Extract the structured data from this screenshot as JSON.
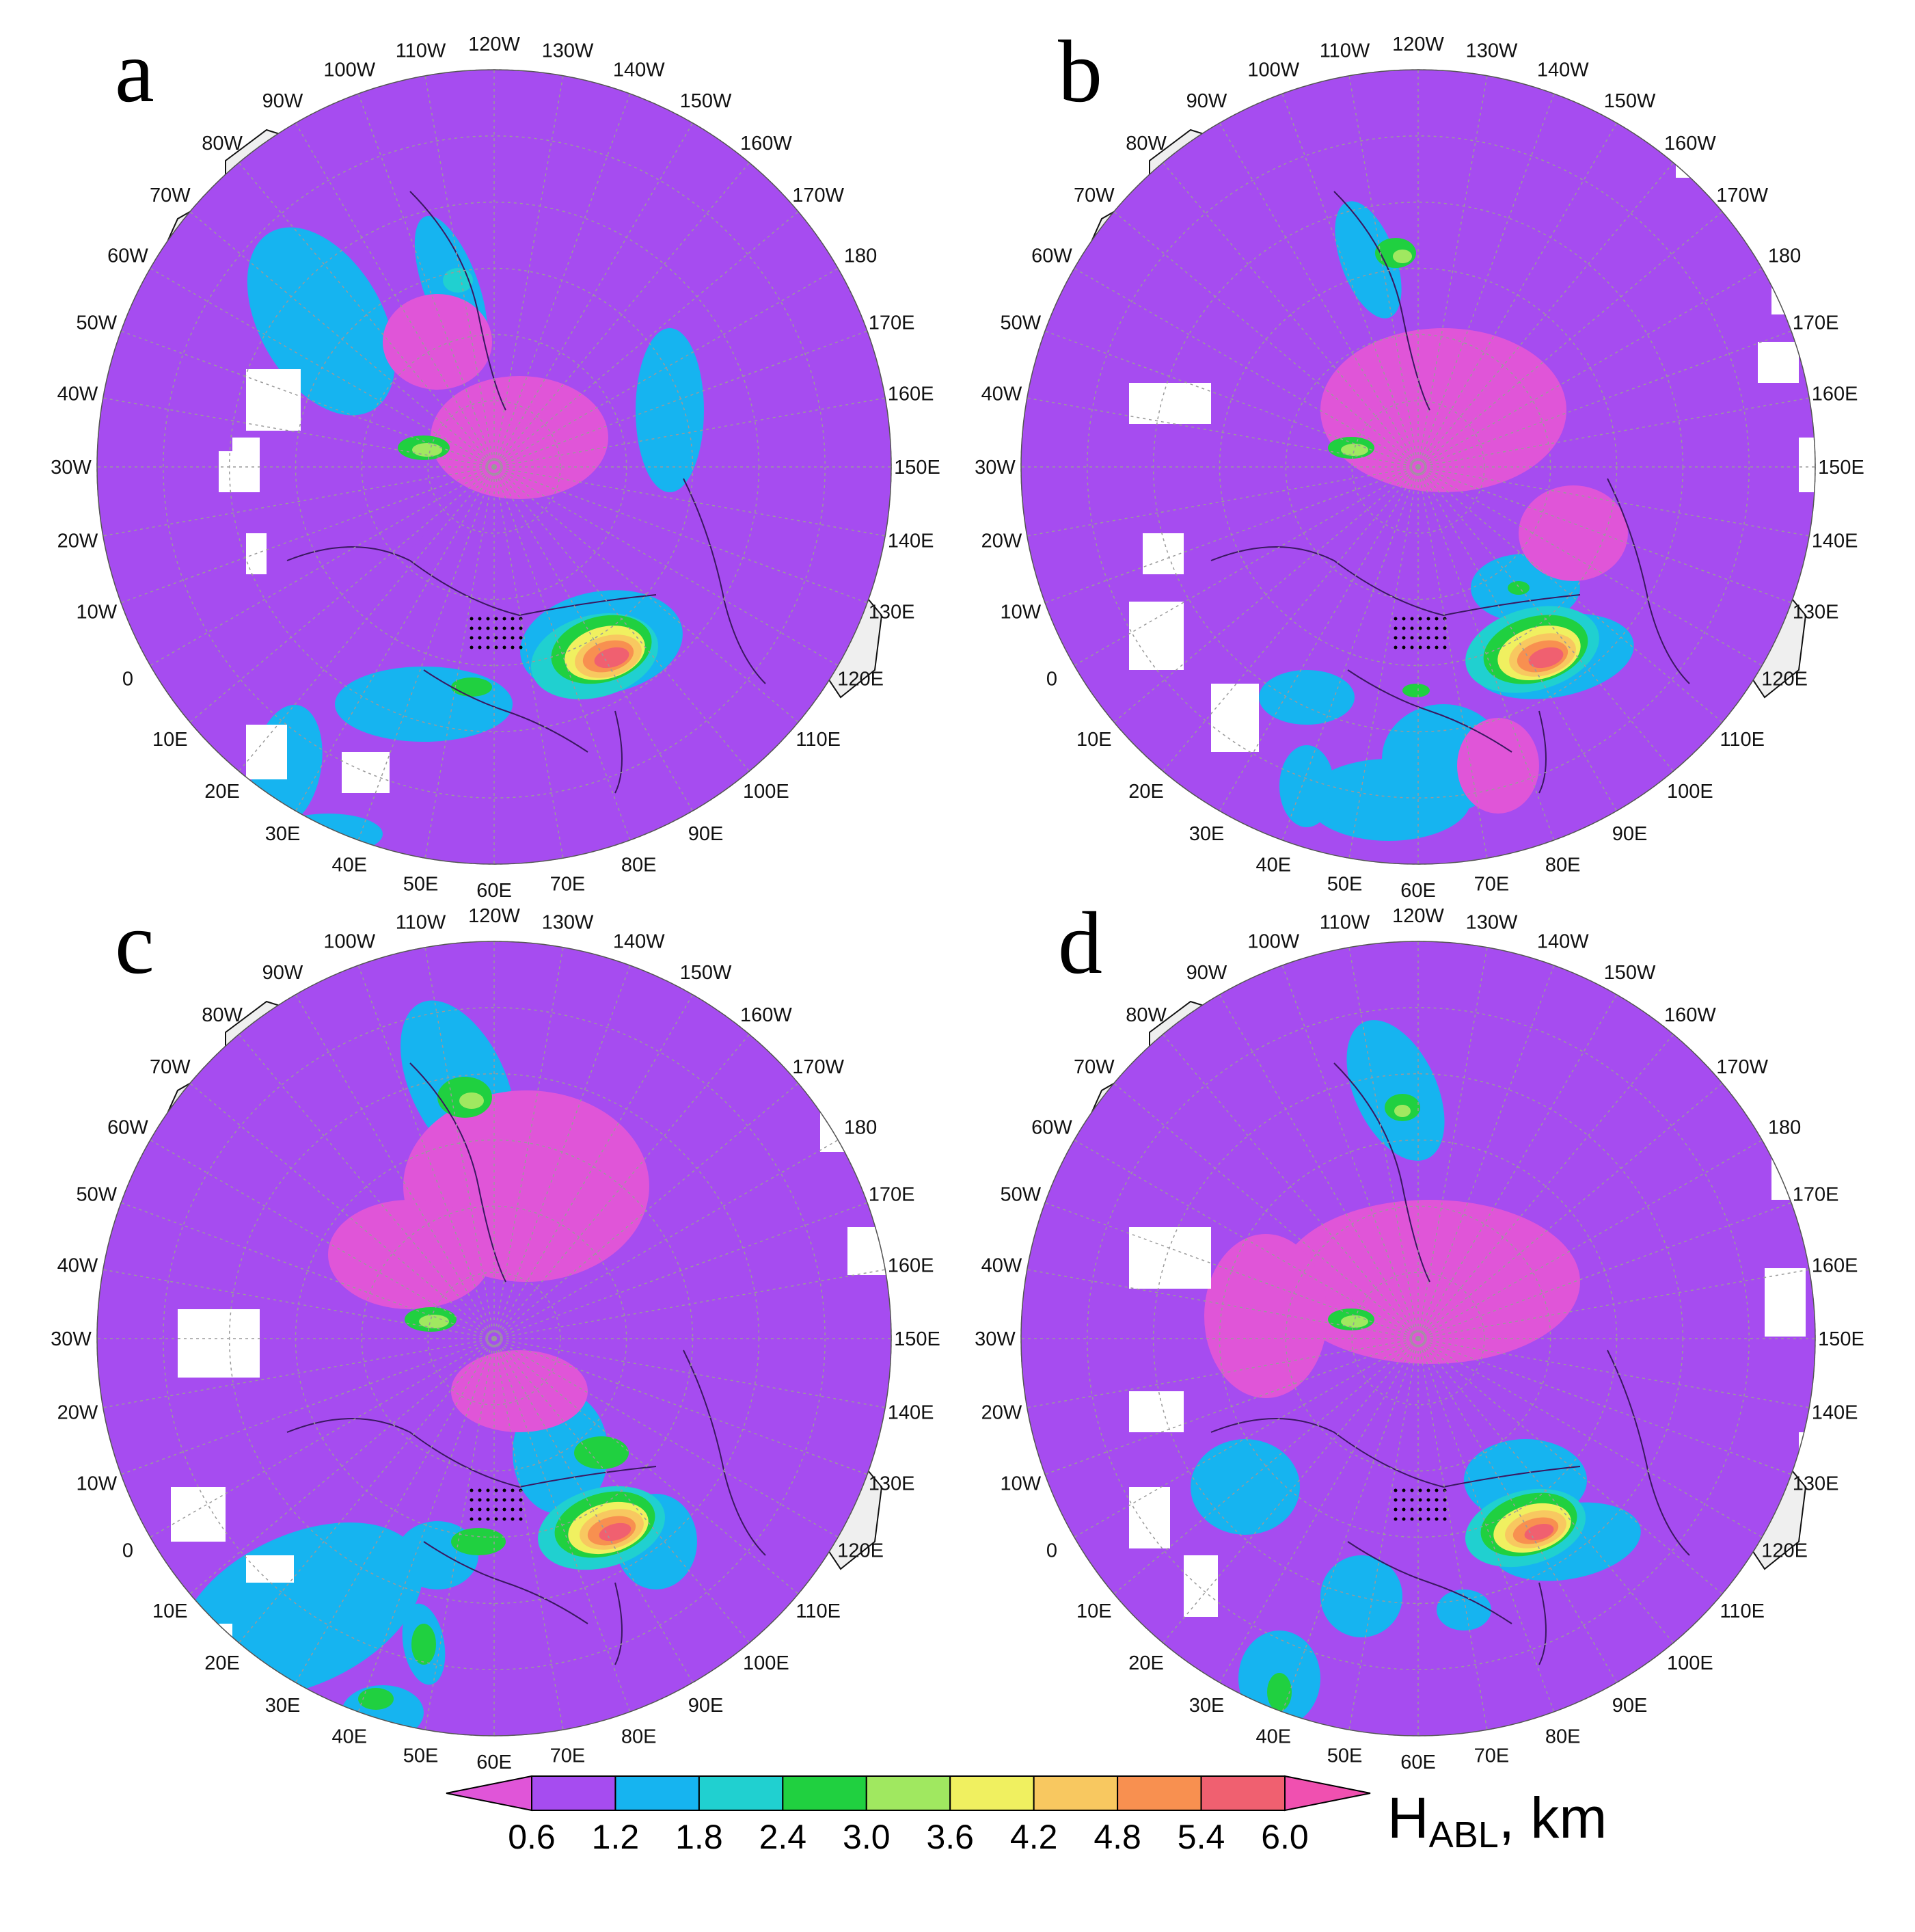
{
  "panels": [
    {
      "letter": "a",
      "blobs": "a"
    },
    {
      "letter": "b",
      "blobs": "b"
    },
    {
      "letter": "c",
      "blobs": "c"
    },
    {
      "letter": "d",
      "blobs": "d"
    }
  ],
  "map": {
    "projection": "north-polar-stereographic",
    "longitude_labels": [
      {
        "lon": -120,
        "text": "120W"
      },
      {
        "lon": -130,
        "text": "130W"
      },
      {
        "lon": -140,
        "text": "140W"
      },
      {
        "lon": -150,
        "text": "150W"
      },
      {
        "lon": -160,
        "text": "160W"
      },
      {
        "lon": -170,
        "text": "170W"
      },
      {
        "lon": 180,
        "text": "180"
      },
      {
        "lon": 170,
        "text": "170E"
      },
      {
        "lon": 160,
        "text": "160E"
      },
      {
        "lon": 150,
        "text": "150E"
      },
      {
        "lon": 140,
        "text": "140E"
      },
      {
        "lon": 130,
        "text": "130E"
      },
      {
        "lon": 120,
        "text": "120E"
      },
      {
        "lon": 110,
        "text": "110E"
      },
      {
        "lon": 100,
        "text": "100E"
      },
      {
        "lon": 90,
        "text": "90E"
      },
      {
        "lon": 80,
        "text": "80E"
      },
      {
        "lon": 70,
        "text": "70E"
      },
      {
        "lon": 60,
        "text": "60E"
      },
      {
        "lon": 50,
        "text": "50E"
      },
      {
        "lon": 40,
        "text": "40E"
      },
      {
        "lon": 30,
        "text": "30E"
      },
      {
        "lon": 20,
        "text": "20E"
      },
      {
        "lon": 10,
        "text": "10E"
      },
      {
        "lon": 0,
        "text": "0"
      },
      {
        "lon": -10,
        "text": "10W"
      },
      {
        "lon": -20,
        "text": "20W"
      },
      {
        "lon": -30,
        "text": "30W"
      },
      {
        "lon": -40,
        "text": "40W"
      },
      {
        "lon": -50,
        "text": "50W"
      },
      {
        "lon": -60,
        "text": "60W"
      },
      {
        "lon": -70,
        "text": "70W"
      },
      {
        "lon": -80,
        "text": "80W"
      },
      {
        "lon": -90,
        "text": "90W"
      },
      {
        "lon": -100,
        "text": "100W"
      },
      {
        "lon": -110,
        "text": "110W"
      }
    ]
  },
  "colorbar": {
    "title_main": "H",
    "title_sub": "ABL",
    "title_unit": ", km",
    "ticks": [
      "0.6",
      "1.2",
      "1.8",
      "2.4",
      "3.0",
      "3.6",
      "4.2",
      "4.8",
      "5.4",
      "6.0"
    ],
    "colors": [
      "#e055d8",
      "#a64cf0",
      "#16b4f0",
      "#20d0d0",
      "#20d040",
      "#a0e860",
      "#f0f060",
      "#f8c860",
      "#f89050",
      "#f06070",
      "#f050b0"
    ],
    "extend": "both"
  },
  "colors": {
    "ocean_land_grey": "#efefef",
    "coast": "#111111",
    "grid": "#9a9a9a"
  }
}
